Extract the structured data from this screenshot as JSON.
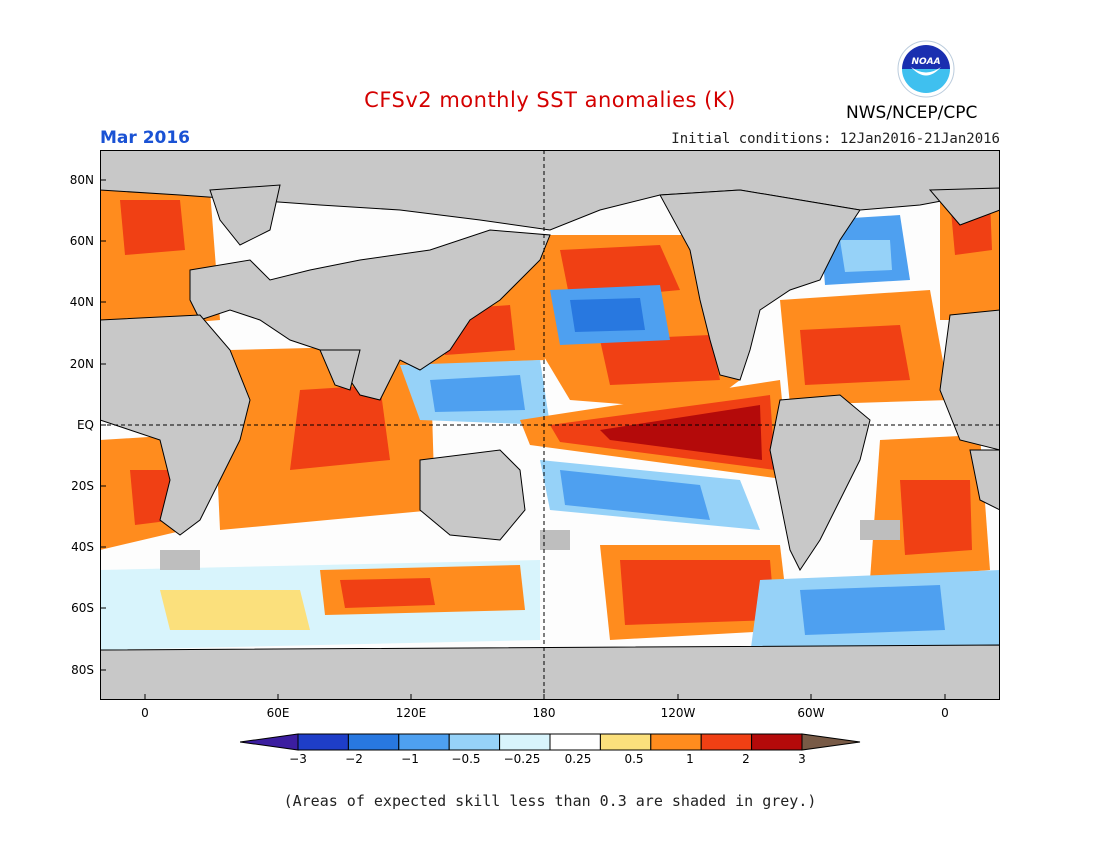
{
  "title": "CFSv2 monthly SST anomalies (K)",
  "target_month": "Mar 2016",
  "target_month_color": "#1a52d4",
  "initial_conditions": "Initial conditions: 12Jan2016-21Jan2016",
  "agency": "NWS/NCEP/CPC",
  "logo_text": "NOAA",
  "footnote": "(Areas of expected skill less than 0.3 are shaded in grey.)",
  "map": {
    "lat_labels": [
      "80N",
      "60N",
      "40N",
      "20N",
      "EQ",
      "20S",
      "40S",
      "60S",
      "80S"
    ],
    "lon_labels": [
      "0",
      "60E",
      "120E",
      "180",
      "120W",
      "60W",
      "0"
    ],
    "land_color": "#c8c8c8",
    "low_skill_color": "#bebebe"
  },
  "colorbar": {
    "labels": [
      "−3",
      "−2",
      "−1",
      "−0.5",
      "−0.25",
      "0.25",
      "0.5",
      "1",
      "2",
      "3"
    ],
    "colors": [
      "#1e3ec8",
      "#2878e0",
      "#4ea0f0",
      "#96d2f8",
      "#d8f4fc",
      "#ffffff",
      "#fbe07c",
      "#ff8c1e",
      "#f04014",
      "#b40a0a"
    ],
    "under_color": "#3c1ea0",
    "over_color": "#785a46"
  }
}
